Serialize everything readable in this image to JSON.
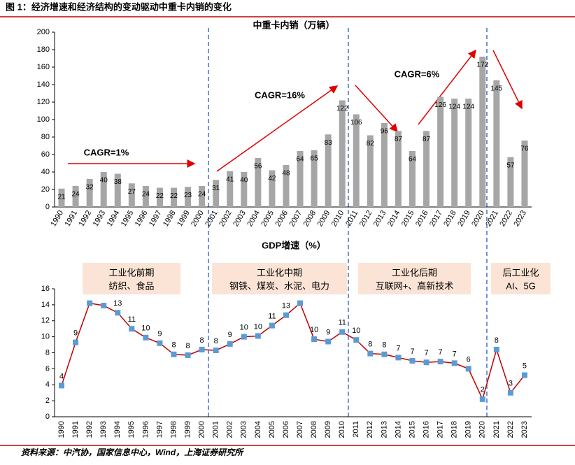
{
  "title": "图 1：经济增速和经济结构的变动驱动中重卡内销的变化",
  "source": "资料来源：中汽协，国家信息中心，Wind，上海证券研究所",
  "chart_data": [
    {
      "type": "bar",
      "title": "中重卡内销（万辆）",
      "categories": [
        "1990",
        "1991",
        "1992",
        "1993",
        "1994",
        "1995",
        "1996",
        "1997",
        "1998",
        "1999",
        "2000",
        "2001",
        "2002",
        "2003",
        "2004",
        "2005",
        "2006",
        "2007",
        "2008",
        "2009",
        "2010",
        "2011",
        "2012",
        "2013",
        "2014",
        "2015",
        "2016",
        "2017",
        "2018",
        "2019",
        "2020",
        "2021",
        "2022",
        "2023"
      ],
      "values": [
        21,
        24,
        32,
        40,
        38,
        27,
        24,
        22,
        22,
        23,
        24,
        31,
        41,
        40,
        56,
        42,
        48,
        64,
        65,
        83,
        122,
        106,
        82,
        96,
        87,
        64,
        87,
        126,
        124,
        124,
        172,
        145,
        57,
        76
      ],
      "color": "#a6a6a6",
      "ylim": [
        0,
        200
      ],
      "yticks": [
        0,
        20,
        40,
        60,
        80,
        100,
        120,
        140,
        160,
        180,
        200
      ],
      "annotations": [
        "CAGR=1%",
        "CAGR=16%",
        "CAGR=6%"
      ]
    },
    {
      "type": "line",
      "title": "GDP增速（%）",
      "categories": [
        "1990",
        "1991",
        "1992",
        "1993",
        "1994",
        "1995",
        "1996",
        "1997",
        "1998",
        "1999",
        "2000",
        "2001",
        "2002",
        "2003",
        "2004",
        "2005",
        "2006",
        "2007",
        "2008",
        "2009",
        "2010",
        "2011",
        "2012",
        "2013",
        "2014",
        "2015",
        "2016",
        "2017",
        "2018",
        "2019",
        "2020",
        "2021",
        "2022",
        "2023"
      ],
      "values": [
        3.9,
        9.3,
        14.2,
        13.9,
        13.0,
        11.0,
        9.9,
        9.2,
        7.8,
        7.7,
        8.4,
        8.3,
        9.1,
        10.0,
        10.1,
        11.4,
        12.7,
        14.2,
        9.7,
        9.4,
        10.6,
        9.6,
        7.9,
        7.8,
        7.4,
        7.0,
        6.8,
        6.9,
        6.7,
        6.0,
        2.2,
        8.4,
        3.0,
        5.2
      ],
      "value_labels": [
        "4",
        "9",
        null,
        null,
        "13",
        "11",
        "10",
        "9",
        "8",
        "8",
        "8",
        "8",
        "9",
        "10",
        "10",
        "11",
        "13",
        null,
        "10",
        "9",
        "11",
        "10",
        "8",
        "8",
        "7",
        "7",
        "7",
        "7",
        "7",
        "6",
        "2",
        "8",
        "3",
        "5"
      ],
      "color": "#c00000",
      "marker_color": "#5b9bd5",
      "ylim": [
        0,
        16
      ],
      "yticks": [
        0,
        2,
        4,
        6,
        8,
        10,
        12,
        14,
        16
      ],
      "phases": [
        {
          "title": "工业化前期",
          "subtitle": "纺织、食品"
        },
        {
          "title": "工业化中期",
          "subtitle": "钢铁、煤炭、水泥、电力"
        },
        {
          "title": "工业化后期",
          "subtitle": "互联网+、高新技术"
        },
        {
          "title": "后工业化",
          "subtitle": "AI、5G"
        }
      ]
    }
  ]
}
